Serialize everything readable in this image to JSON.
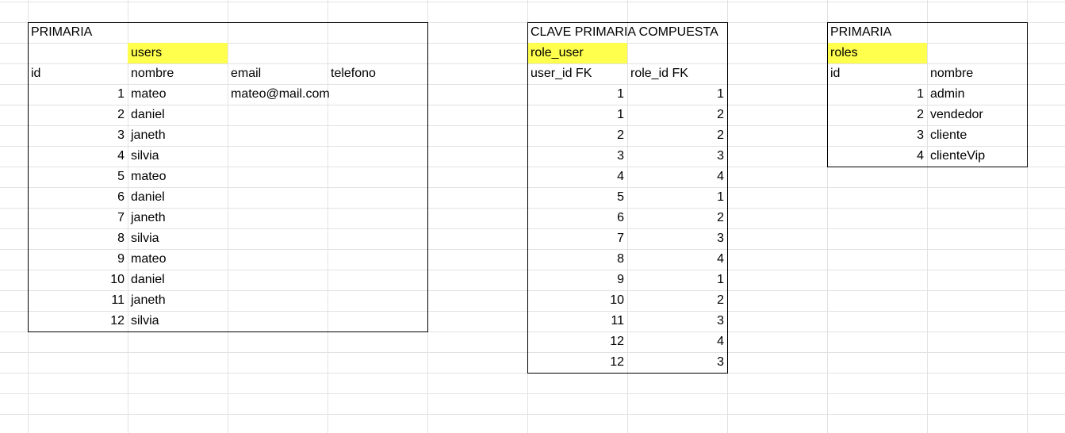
{
  "colors": {
    "highlight": "#ffff4d",
    "grid": "#e2e2e2",
    "border": "#000000"
  },
  "users_table": {
    "label": "PRIMARIA",
    "name": "users",
    "headers": [
      "id",
      "nombre",
      "email",
      "telefono"
    ],
    "rows": [
      [
        "1",
        "mateo",
        "mateo@mail.com",
        ""
      ],
      [
        "2",
        "daniel",
        "",
        ""
      ],
      [
        "3",
        "janeth",
        "",
        ""
      ],
      [
        "4",
        "silvia",
        "",
        ""
      ],
      [
        "5",
        "mateo",
        "",
        ""
      ],
      [
        "6",
        "daniel",
        "",
        ""
      ],
      [
        "7",
        "janeth",
        "",
        ""
      ],
      [
        "8",
        "silvia",
        "",
        ""
      ],
      [
        "9",
        "mateo",
        "",
        ""
      ],
      [
        "10",
        "daniel",
        "",
        ""
      ],
      [
        "11",
        "janeth",
        "",
        ""
      ],
      [
        "12",
        "silvia",
        "",
        ""
      ]
    ]
  },
  "role_user_table": {
    "label": "CLAVE PRIMARIA COMPUESTA",
    "name": "role_user",
    "headers": [
      "user_id FK",
      "role_id FK"
    ],
    "rows": [
      [
        "1",
        "1"
      ],
      [
        "1",
        "2"
      ],
      [
        "2",
        "2"
      ],
      [
        "3",
        "3"
      ],
      [
        "4",
        "4"
      ],
      [
        "5",
        "1"
      ],
      [
        "6",
        "2"
      ],
      [
        "7",
        "3"
      ],
      [
        "8",
        "4"
      ],
      [
        "9",
        "1"
      ],
      [
        "10",
        "2"
      ],
      [
        "11",
        "3"
      ],
      [
        "12",
        "4"
      ],
      [
        "12",
        "3"
      ]
    ]
  },
  "roles_table": {
    "label": "PRIMARIA",
    "name": "roles",
    "headers": [
      "id",
      "nombre"
    ],
    "rows": [
      [
        "1",
        "admin"
      ],
      [
        "2",
        "vendedor"
      ],
      [
        "3",
        "cliente"
      ],
      [
        "4",
        "clienteVip"
      ]
    ]
  }
}
